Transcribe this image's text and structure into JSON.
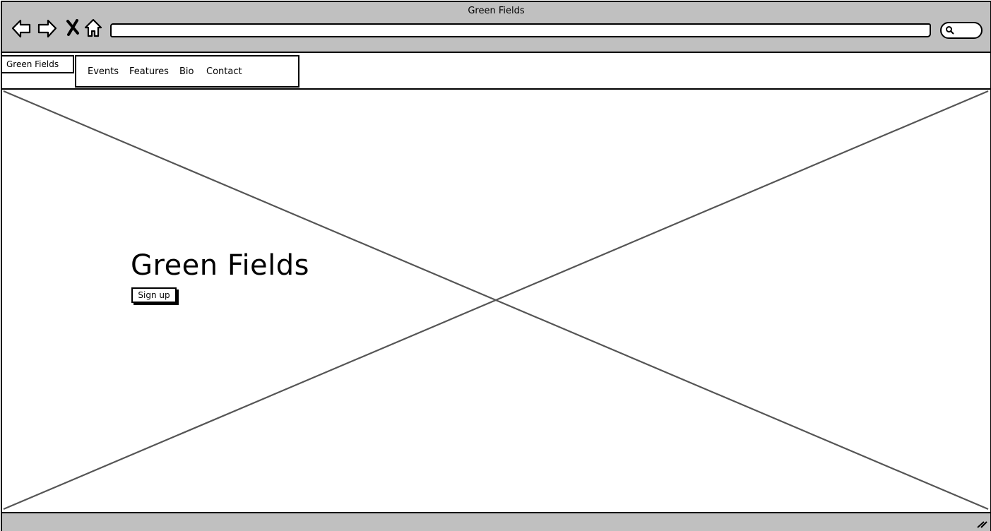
{
  "window": {
    "title": "Green Fields"
  },
  "toolbar": {
    "icons": [
      "back-arrow-icon",
      "forward-arrow-icon",
      "close-x-icon",
      "home-icon",
      "search-icon"
    ],
    "address_value": ""
  },
  "header": {
    "logo_text": "Green Fields",
    "menu": [
      {
        "label": "Events"
      },
      {
        "label": "Features"
      },
      {
        "label": "Bio"
      },
      {
        "label": "Contact"
      }
    ]
  },
  "hero": {
    "title": "Green Fields",
    "button_label": "Sign up",
    "image": "image-placeholder"
  },
  "colors": {
    "chrome": "#c0c0c0",
    "stroke": "#000000",
    "placeholder_line": "#555555"
  }
}
